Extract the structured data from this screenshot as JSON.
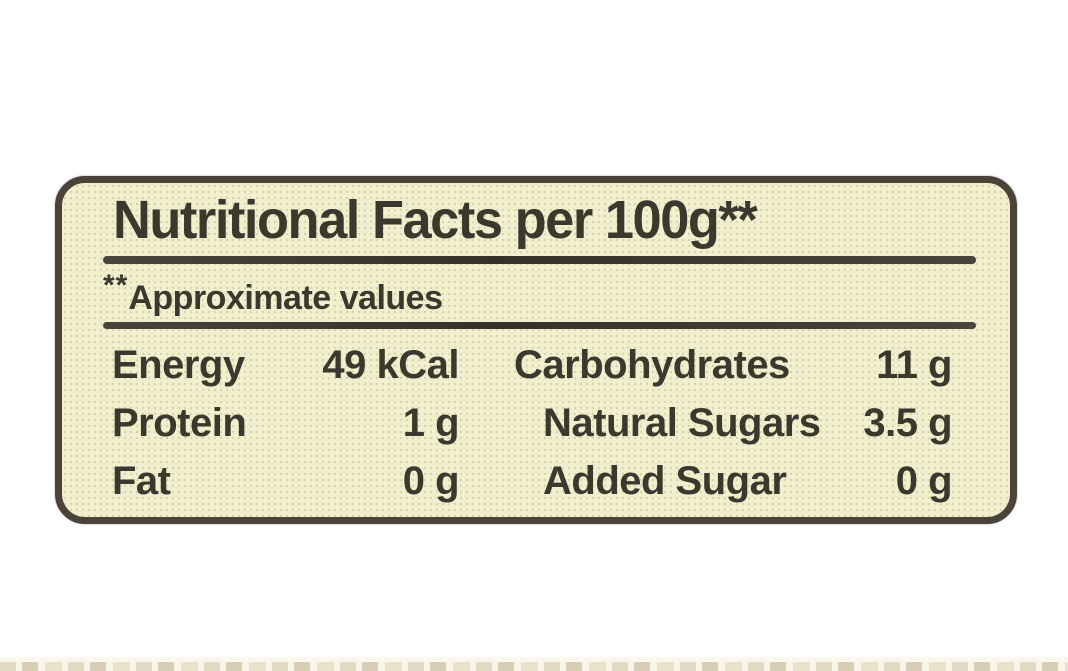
{
  "nutrition_label": {
    "title": "Nutritional Facts per 100g**",
    "footnote": {
      "marker": "**",
      "text": "Approximate values"
    },
    "columns": {
      "left": [
        {
          "name": "Energy",
          "value": "49 kCal"
        },
        {
          "name": "Protein",
          "value": "1 g"
        },
        {
          "name": "Fat",
          "value": "0 g"
        }
      ],
      "right": [
        {
          "name": "Carbohydrates",
          "value": "11 g"
        },
        {
          "name": "Natural Sugars",
          "value": "3.5 g"
        },
        {
          "name": "Added Sugar",
          "value": "0 g"
        }
      ]
    },
    "colors": {
      "label_background": "#f1efce",
      "text": "#3b382d",
      "border": "#4a433a",
      "page_background": "#ffffff"
    }
  }
}
